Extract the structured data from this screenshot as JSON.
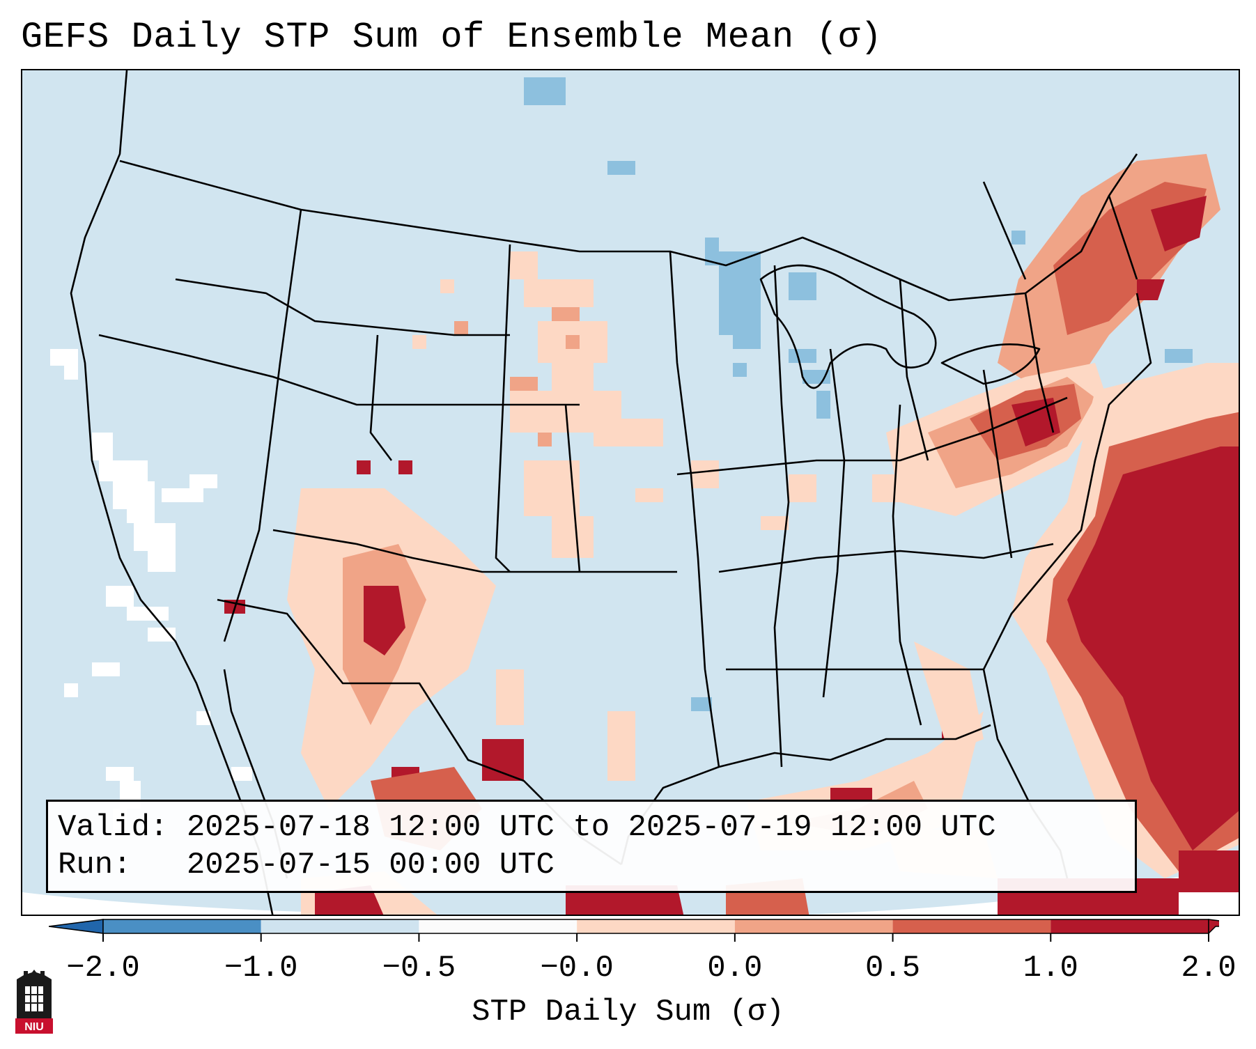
{
  "title": "GEFS Daily STP Sum of Ensemble Mean (σ)",
  "info": {
    "valid_line": "Valid: 2025-07-18 12:00 UTC to 2025-07-19 12:00 UTC",
    "run_line": "Run:   2025-07-15 00:00 UTC"
  },
  "colorbar": {
    "label": "STP Daily Sum (σ)",
    "ticks": [
      "−2.0",
      "−1.0",
      "−0.5",
      "−0.0",
      "0.0",
      "0.5",
      "1.0",
      "2.0"
    ],
    "colors": [
      "#4a8fc4",
      "#8dc0de",
      "#cfe3ef",
      "#fbfbfb",
      "#fdd8c4",
      "#f0a487",
      "#d6604d",
      "#b2182b"
    ],
    "extend_low_color": "#2166ac",
    "extend_high_color": "#b2182b"
  },
  "map": {
    "ocean_color": "#d1e5f0",
    "outside_color": "#ffffff",
    "line_color": "#000000",
    "regions": [
      {
        "name": "northeast-high-stp",
        "level": "2.0"
      },
      {
        "name": "mid-atlantic-high-stp",
        "level": "2.0"
      },
      {
        "name": "atlantic-offshore-high-stp",
        "level": "2.0"
      },
      {
        "name": "southwest-high-stp",
        "level": "1.0"
      },
      {
        "name": "gulf-moderate-stp",
        "level": "0.5"
      },
      {
        "name": "upper-midwest-negative-stp",
        "level": "-0.5"
      }
    ]
  },
  "logo": {
    "text": "NIU",
    "color": "#c8102e"
  }
}
